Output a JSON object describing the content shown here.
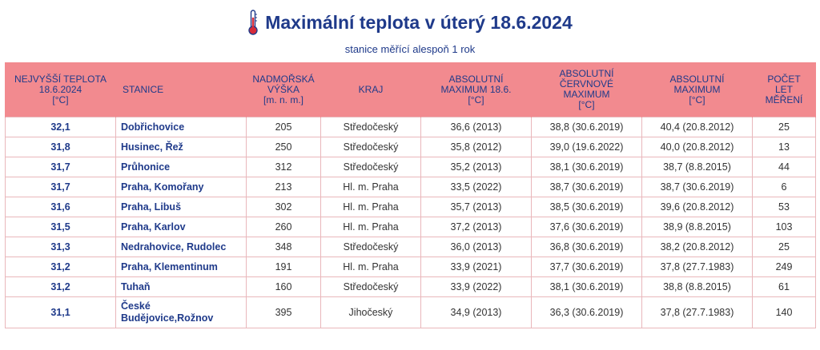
{
  "header": {
    "title": "Maximální teplota v úterý 18.6.2024",
    "subtitle": "stanice měřící alespoň 1 rok",
    "icon": "thermometer-icon",
    "colors": {
      "title": "#1f3a8a",
      "header_bg": "#f28a8f",
      "accent": "#d62b3a"
    }
  },
  "table": {
    "columns": [
      "NEJVYŠŠÍ TEPLOTA\n18.6.2024\n[°C]",
      "STANICE",
      "NADMOŘSKÁ\nVÝŠKA\n[m. n. m.]",
      "KRAJ",
      "ABSOLUTNÍ\nMAXIMUM 18.6.\n[°C]",
      "ABSOLUTNÍ\nČERVNOVÉ\nMAXIMUM\n[°C]",
      "ABSOLUTNÍ\nMAXIMUM\n[°C]",
      "POČET\nLET\nMĚŘENÍ"
    ],
    "rows": [
      [
        "32,1",
        "Dobřichovice",
        "205",
        "Středočeský",
        "36,6 (2013)",
        "38,8 (30.6.2019)",
        "40,4 (20.8.2012)",
        "25"
      ],
      [
        "31,8",
        "Husinec, Řež",
        "250",
        "Středočeský",
        "35,8 (2012)",
        "39,0 (19.6.2022)",
        "40,0 (20.8.2012)",
        "13"
      ],
      [
        "31,7",
        "Průhonice",
        "312",
        "Středočeský",
        "35,2 (2013)",
        "38,1 (30.6.2019)",
        "38,7 (8.8.2015)",
        "44"
      ],
      [
        "31,7",
        "Praha, Komořany",
        "213",
        "Hl. m. Praha",
        "33,5 (2022)",
        "38,7 (30.6.2019)",
        "38,7 (30.6.2019)",
        "6"
      ],
      [
        "31,6",
        "Praha, Libuš",
        "302",
        "Hl. m. Praha",
        "35,7 (2013)",
        "38,5 (30.6.2019)",
        "39,6 (20.8.2012)",
        "53"
      ],
      [
        "31,5",
        "Praha, Karlov",
        "260",
        "Hl. m. Praha",
        "37,2 (2013)",
        "37,6 (30.6.2019)",
        "38,9 (8.8.2015)",
        "103"
      ],
      [
        "31,3",
        "Nedrahovice, Rudolec",
        "348",
        "Středočeský",
        "36,0 (2013)",
        "36,8 (30.6.2019)",
        "38,2 (20.8.2012)",
        "25"
      ],
      [
        "31,2",
        "Praha, Klementinum",
        "191",
        "Hl. m. Praha",
        "33,9 (2021)",
        "37,7 (30.6.2019)",
        "37,8 (27.7.1983)",
        "249"
      ],
      [
        "31,2",
        "Tuhaň",
        "160",
        "Středočeský",
        "33,9 (2022)",
        "38,1 (30.6.2019)",
        "38,8 (8.8.2015)",
        "61"
      ],
      [
        "31,1",
        "České Budějovice,Rožnov",
        "395",
        "Jihočeský",
        "34,9 (2013)",
        "36,3 (30.6.2019)",
        "37,8 (27.7.1983)",
        "140"
      ]
    ]
  }
}
